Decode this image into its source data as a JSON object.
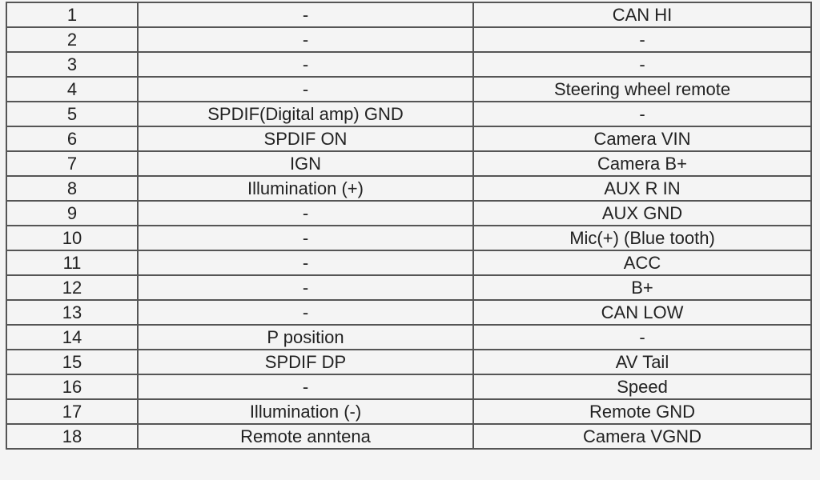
{
  "rows": [
    [
      "1",
      "-",
      "CAN HI"
    ],
    [
      "2",
      "-",
      "-"
    ],
    [
      "3",
      "-",
      "-"
    ],
    [
      "4",
      "-",
      "Steering wheel remote"
    ],
    [
      "5",
      "SPDIF(Digital amp) GND",
      "-"
    ],
    [
      "6",
      "SPDIF ON",
      "Camera VIN"
    ],
    [
      "7",
      "IGN",
      "Camera B+"
    ],
    [
      "8",
      "Illumination (+)",
      "AUX R IN"
    ],
    [
      "9",
      "-",
      "AUX GND"
    ],
    [
      "10",
      "-",
      "Mic(+) (Blue tooth)"
    ],
    [
      "11",
      "-",
      "ACC"
    ],
    [
      "12",
      "-",
      "B+"
    ],
    [
      "13",
      "-",
      "CAN LOW"
    ],
    [
      "14",
      "P position",
      "-"
    ],
    [
      "15",
      "SPDIF DP",
      "AV Tail"
    ],
    [
      "16",
      "-",
      "Speed"
    ],
    [
      "17",
      "Illumination (-)",
      "Remote GND"
    ],
    [
      "18",
      "Remote anntena",
      "Camera VGND"
    ]
  ]
}
